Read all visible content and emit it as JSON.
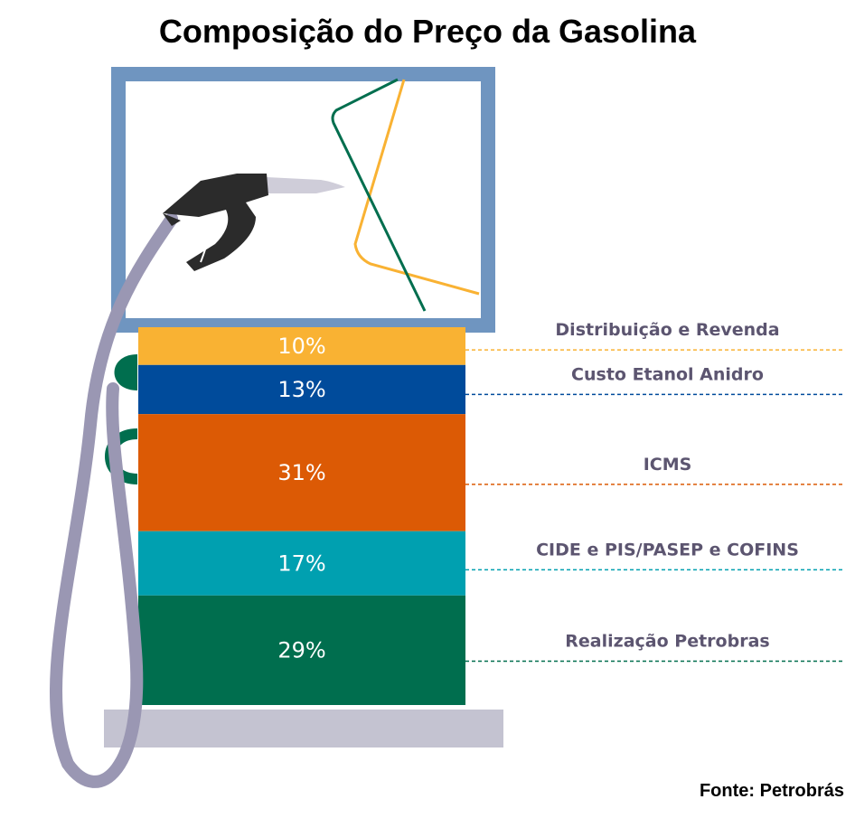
{
  "title": "Composição do Preço da Gasolina",
  "source": "Fonte: Petrobrás",
  "colors": {
    "screen_frame": "#6f95c0",
    "hose": "#9a97b3",
    "base": "#c4c3d1",
    "nozzle": "#2b2b2b",
    "label_text": "#5c5570"
  },
  "icons": [
    "fuel-pump-icon",
    "fuel-nozzle-icon",
    "fuel-hose-icon"
  ],
  "chart_data": {
    "type": "bar",
    "layout": "stacked-single",
    "unit": "%",
    "segments": [
      {
        "label": "Distribuição e Revenda",
        "value": 10,
        "display": "10%",
        "color": "#f9b233"
      },
      {
        "label": "Custo Etanol Anidro",
        "value": 13,
        "display": "13%",
        "color": "#004b9b"
      },
      {
        "label": "ICMS",
        "value": 31,
        "display": "31%",
        "color": "#dc5a05"
      },
      {
        "label": "CIDE e PIS/PASEP e COFINS",
        "value": 17,
        "display": "17%",
        "color": "#00a0b0"
      },
      {
        "label": "Realização Petrobras",
        "value": 29,
        "display": "29%",
        "color": "#006e4e"
      }
    ]
  }
}
